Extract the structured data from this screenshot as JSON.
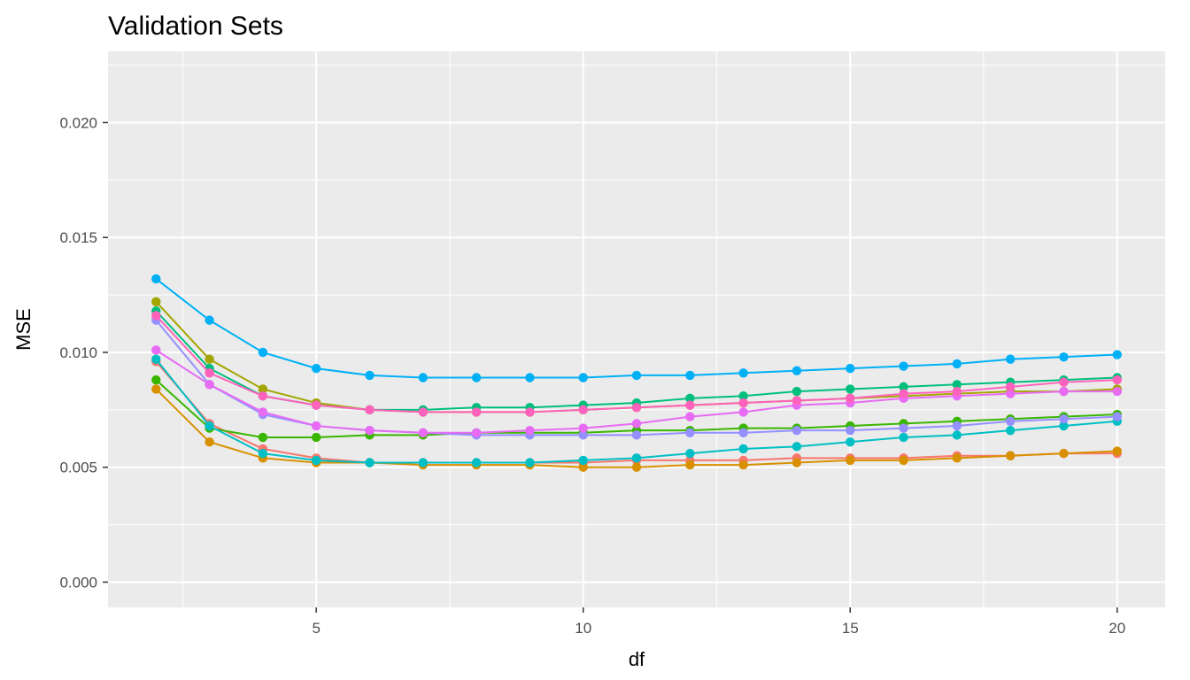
{
  "chart_data": {
    "type": "line",
    "title": "Validation Sets",
    "xlabel": "df",
    "ylabel": "MSE",
    "xlim": [
      1.1,
      20.9
    ],
    "ylim": [
      -0.0011,
      0.0231
    ],
    "x_ticks": [
      5,
      10,
      15,
      20
    ],
    "y_ticks": [
      0.0,
      0.005,
      0.01,
      0.015,
      0.02
    ],
    "x_tick_labels": [
      "5",
      "10",
      "15",
      "20"
    ],
    "y_tick_labels": [
      "0.000",
      "0.005",
      "0.010",
      "0.015",
      "0.020"
    ],
    "grid": true,
    "legend": "none",
    "x": [
      2,
      3,
      4,
      5,
      6,
      7,
      8,
      9,
      10,
      11,
      12,
      13,
      14,
      15,
      16,
      17,
      18,
      19,
      20
    ],
    "series": [
      {
        "color": "#F8766D",
        "values": [
          0.0096,
          0.0069,
          0.0058,
          0.0054,
          0.0052,
          0.0052,
          0.0052,
          0.0052,
          0.0052,
          0.0053,
          0.0053,
          0.0053,
          0.0054,
          0.0054,
          0.0054,
          0.0055,
          0.0055,
          0.0056,
          0.0056
        ]
      },
      {
        "color": "#D89000",
        "values": [
          0.0084,
          0.0061,
          0.0054,
          0.0052,
          0.0052,
          0.0051,
          0.0051,
          0.0051,
          0.005,
          0.005,
          0.0051,
          0.0051,
          0.0052,
          0.0053,
          0.0053,
          0.0054,
          0.0055,
          0.0056,
          0.0057
        ]
      },
      {
        "color": "#A3A500",
        "values": [
          0.0122,
          0.0097,
          0.0084,
          0.0078,
          0.0075,
          0.0074,
          0.0074,
          0.0074,
          0.0075,
          0.0076,
          0.0077,
          0.0078,
          0.0079,
          0.008,
          0.0081,
          0.0082,
          0.0083,
          0.0083,
          0.0084
        ]
      },
      {
        "color": "#39B600",
        "values": [
          0.0088,
          0.0067,
          0.0063,
          0.0063,
          0.0064,
          0.0064,
          0.0065,
          0.0065,
          0.0065,
          0.0066,
          0.0066,
          0.0067,
          0.0067,
          0.0068,
          0.0069,
          0.007,
          0.0071,
          0.0072,
          0.0073
        ]
      },
      {
        "color": "#00BF7D",
        "values": [
          0.0118,
          0.0093,
          0.0081,
          0.0077,
          0.0075,
          0.0075,
          0.0076,
          0.0076,
          0.0077,
          0.0078,
          0.008,
          0.0081,
          0.0083,
          0.0084,
          0.0085,
          0.0086,
          0.0087,
          0.0088,
          0.0089
        ]
      },
      {
        "color": "#00BFC4",
        "values": [
          0.0097,
          0.0068,
          0.0056,
          0.0053,
          0.0052,
          0.0052,
          0.0052,
          0.0052,
          0.0053,
          0.0054,
          0.0056,
          0.0058,
          0.0059,
          0.0061,
          0.0063,
          0.0064,
          0.0066,
          0.0068,
          0.007
        ]
      },
      {
        "color": "#00B0F6",
        "values": [
          0.0132,
          0.0114,
          0.01,
          0.0093,
          0.009,
          0.0089,
          0.0089,
          0.0089,
          0.0089,
          0.009,
          0.009,
          0.0091,
          0.0092,
          0.0093,
          0.0094,
          0.0095,
          0.0097,
          0.0098,
          0.0099
        ]
      },
      {
        "color": "#9590FF",
        "values": [
          0.0114,
          0.0086,
          0.0073,
          0.0068,
          0.0066,
          0.0065,
          0.0064,
          0.0064,
          0.0064,
          0.0064,
          0.0065,
          0.0065,
          0.0066,
          0.0066,
          0.0067,
          0.0068,
          0.007,
          0.0071,
          0.0072
        ]
      },
      {
        "color": "#E76BF3",
        "values": [
          0.0101,
          0.0086,
          0.0074,
          0.0068,
          0.0066,
          0.0065,
          0.0065,
          0.0066,
          0.0067,
          0.0069,
          0.0072,
          0.0074,
          0.0077,
          0.0078,
          0.008,
          0.0081,
          0.0082,
          0.0083,
          0.0083
        ]
      },
      {
        "color": "#FF62BC",
        "values": [
          0.0116,
          0.0091,
          0.0081,
          0.0077,
          0.0075,
          0.0074,
          0.0074,
          0.0074,
          0.0075,
          0.0076,
          0.0077,
          0.0078,
          0.0079,
          0.008,
          0.0082,
          0.0083,
          0.0085,
          0.0087,
          0.0088
        ]
      }
    ]
  }
}
